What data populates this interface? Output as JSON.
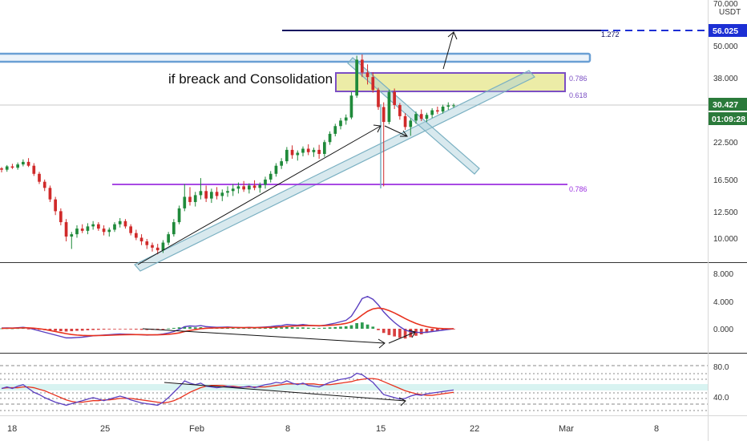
{
  "chart_data": {
    "type": "candlestick",
    "currency": "USDT",
    "last_price": "30.427",
    "countdown": "01:09:28",
    "target_price": "56.025",
    "y_ticks": [
      "70.000",
      "50.000",
      "38.000",
      "22.500",
      "16.500",
      "12.500",
      "10.000"
    ],
    "x_ticks": [
      "18",
      "25",
      "Feb",
      "8",
      "15",
      "22",
      "Mar",
      "8"
    ],
    "annotation": "if breack and Consolidation",
    "fib_labels": {
      "f1272": "1.272",
      "f0786_top": "0.786",
      "f0618": "0.618",
      "f0786_low": "0.786"
    },
    "panels": {
      "macd": {
        "y_ticks": [
          "8.000",
          "4.000",
          "0.000"
        ]
      },
      "rsi": {
        "y_ticks": [
          "80.0",
          "40.0"
        ]
      }
    },
    "ohlc": [
      [
        18.0,
        18.2,
        17.4,
        17.8
      ],
      [
        17.8,
        18.5,
        17.5,
        18.3
      ],
      [
        18.3,
        18.7,
        17.9,
        18.1
      ],
      [
        18.1,
        18.9,
        17.8,
        18.6
      ],
      [
        18.6,
        19.4,
        18.3,
        19.0
      ],
      [
        19.0,
        19.6,
        18.2,
        18.4
      ],
      [
        18.4,
        18.8,
        16.9,
        17.2
      ],
      [
        17.2,
        17.5,
        15.8,
        16.1
      ],
      [
        16.1,
        16.4,
        14.9,
        15.3
      ],
      [
        15.3,
        15.6,
        13.6,
        13.9
      ],
      [
        13.9,
        14.2,
        12.2,
        12.6
      ],
      [
        12.6,
        12.9,
        11.2,
        11.5
      ],
      [
        11.5,
        11.8,
        9.8,
        10.2
      ],
      [
        10.2,
        10.6,
        9.2,
        10.4
      ],
      [
        10.4,
        11.2,
        10.1,
        10.9
      ],
      [
        10.9,
        11.3,
        10.5,
        10.7
      ],
      [
        10.7,
        11.4,
        10.4,
        11.1
      ],
      [
        11.1,
        11.6,
        10.8,
        11.3
      ],
      [
        11.3,
        11.5,
        10.7,
        10.9
      ],
      [
        10.9,
        11.2,
        10.3,
        10.6
      ],
      [
        10.6,
        11.0,
        10.2,
        10.8
      ],
      [
        10.8,
        11.5,
        10.6,
        11.3
      ],
      [
        11.3,
        11.9,
        11.0,
        11.6
      ],
      [
        11.6,
        11.8,
        10.9,
        11.1
      ],
      [
        11.1,
        11.3,
        10.3,
        10.5
      ],
      [
        10.5,
        10.8,
        9.9,
        10.1
      ],
      [
        10.1,
        10.4,
        9.5,
        9.8
      ],
      [
        9.8,
        10.0,
        9.2,
        9.5
      ],
      [
        9.5,
        9.7,
        9.0,
        9.3
      ],
      [
        9.3,
        9.6,
        8.8,
        9.1
      ],
      [
        9.1,
        9.9,
        8.9,
        9.7
      ],
      [
        9.7,
        10.6,
        9.5,
        10.4
      ],
      [
        10.4,
        11.8,
        10.2,
        11.5
      ],
      [
        11.5,
        13.2,
        11.3,
        12.9
      ],
      [
        12.9,
        15.8,
        12.6,
        14.2
      ],
      [
        14.2,
        15.4,
        13.2,
        13.6
      ],
      [
        13.6,
        14.8,
        13.1,
        14.4
      ],
      [
        14.4,
        16.6,
        13.9,
        14.9
      ],
      [
        14.9,
        15.6,
        13.6,
        14.0
      ],
      [
        14.0,
        15.2,
        13.5,
        14.8
      ],
      [
        14.8,
        15.4,
        13.9,
        14.3
      ],
      [
        14.3,
        15.1,
        13.7,
        14.7
      ],
      [
        14.7,
        15.5,
        14.2,
        14.9
      ],
      [
        14.9,
        15.8,
        14.3,
        15.2
      ],
      [
        15.2,
        16.0,
        14.6,
        15.5
      ],
      [
        15.5,
        16.2,
        14.8,
        15.1
      ],
      [
        15.1,
        15.9,
        14.6,
        15.6
      ],
      [
        15.6,
        16.3,
        15.0,
        15.3
      ],
      [
        15.3,
        16.0,
        14.7,
        15.7
      ],
      [
        15.7,
        16.8,
        15.2,
        16.4
      ],
      [
        16.4,
        17.6,
        16.0,
        17.2
      ],
      [
        17.2,
        18.8,
        16.8,
        18.4
      ],
      [
        18.4,
        19.6,
        17.9,
        19.1
      ],
      [
        19.1,
        21.5,
        18.7,
        21.0
      ],
      [
        21.0,
        21.8,
        19.5,
        20.1
      ],
      [
        20.1,
        20.9,
        19.2,
        20.5
      ],
      [
        20.5,
        21.6,
        19.9,
        21.2
      ],
      [
        21.2,
        22.0,
        20.1,
        20.6
      ],
      [
        20.6,
        21.4,
        19.8,
        21.0
      ],
      [
        21.0,
        21.9,
        19.5,
        20.3
      ],
      [
        20.3,
        22.8,
        19.8,
        22.4
      ],
      [
        22.4,
        24.5,
        21.9,
        24.0
      ],
      [
        24.0,
        26.1,
        23.5,
        25.6
      ],
      [
        25.6,
        27.4,
        24.9,
        26.8
      ],
      [
        26.8,
        28.2,
        25.9,
        27.5
      ],
      [
        27.5,
        34.0,
        27.1,
        33.0
      ],
      [
        33.0,
        46.0,
        32.4,
        44.5
      ],
      [
        44.5,
        46.5,
        38.5,
        40.0
      ],
      [
        40.0,
        42.8,
        36.2,
        38.5
      ],
      [
        38.5,
        40.1,
        33.8,
        34.6
      ],
      [
        34.6,
        35.2,
        29.3,
        30.0
      ],
      [
        30.0,
        31.2,
        15.5,
        26.5
      ],
      [
        26.5,
        34.6,
        26.0,
        34.0
      ],
      [
        34.0,
        35.0,
        29.5,
        30.5
      ],
      [
        30.5,
        31.0,
        27.0,
        27.8
      ],
      [
        27.8,
        28.5,
        24.8,
        25.4
      ],
      [
        25.4,
        27.3,
        23.6,
        26.8
      ],
      [
        26.8,
        28.9,
        26.1,
        28.3
      ],
      [
        28.3,
        29.4,
        26.7,
        27.2
      ],
      [
        27.2,
        28.6,
        26.5,
        28.1
      ],
      [
        28.1,
        29.7,
        27.4,
        29.2
      ],
      [
        29.2,
        30.1,
        28.3,
        28.9
      ],
      [
        28.9,
        30.6,
        28.4,
        30.1
      ],
      [
        30.1,
        31.2,
        29.3,
        30.4
      ],
      [
        30.4,
        30.9,
        29.8,
        30.427
      ]
    ],
    "vol_hist": [
      0.05,
      0.06,
      0.04,
      0.07,
      0.08,
      -0.05,
      -0.12,
      -0.15,
      -0.2,
      -0.25,
      -0.3,
      -0.35,
      -0.4,
      -0.35,
      -0.3,
      -0.28,
      -0.22,
      -0.18,
      -0.15,
      -0.12,
      -0.1,
      -0.08,
      -0.05,
      -0.08,
      -0.1,
      -0.12,
      -0.15,
      -0.18,
      -0.15,
      -0.12,
      -0.05,
      0.05,
      0.12,
      0.2,
      0.3,
      0.25,
      0.2,
      0.22,
      0.15,
      0.12,
      0.1,
      0.12,
      0.15,
      0.12,
      0.1,
      0.08,
      0.1,
      0.08,
      0.1,
      0.12,
      0.15,
      0.2,
      0.18,
      0.25,
      0.22,
      0.18,
      0.2,
      0.15,
      0.12,
      0.1,
      0.15,
      0.2,
      0.25,
      0.3,
      0.35,
      0.5,
      0.8,
      0.9,
      0.6,
      0.3,
      -0.2,
      -0.6,
      -0.9,
      -1.1,
      -1.3,
      -1.4,
      -1.2,
      -1.0,
      -0.8,
      -0.6,
      -0.4,
      -0.3,
      -0.2,
      -0.1,
      -0.05
    ],
    "macd_line": [
      0.1,
      0.12,
      0.1,
      0.15,
      0.2,
      0.1,
      -0.1,
      -0.3,
      -0.5,
      -0.7,
      -0.9,
      -1.1,
      -1.3,
      -1.3,
      -1.25,
      -1.2,
      -1.1,
      -1.0,
      -0.95,
      -0.9,
      -0.85,
      -0.8,
      -0.75,
      -0.78,
      -0.8,
      -0.82,
      -0.85,
      -0.9,
      -0.88,
      -0.85,
      -0.75,
      -0.6,
      -0.4,
      -0.1,
      0.3,
      0.4,
      0.35,
      0.45,
      0.3,
      0.25,
      0.2,
      0.22,
      0.25,
      0.2,
      0.18,
      0.15,
      0.2,
      0.15,
      0.2,
      0.25,
      0.3,
      0.4,
      0.45,
      0.6,
      0.55,
      0.5,
      0.6,
      0.5,
      0.45,
      0.4,
      0.5,
      0.65,
      0.8,
      1.0,
      1.2,
      1.8,
      3.0,
      4.3,
      4.6,
      4.2,
      3.4,
      2.4,
      1.6,
      0.9,
      0.3,
      -0.2,
      -0.4,
      -0.5,
      -0.55,
      -0.5,
      -0.4,
      -0.3,
      -0.2,
      -0.1,
      0.0
    ],
    "signal_line": [
      0.05,
      0.07,
      0.08,
      0.1,
      0.12,
      0.12,
      0.08,
      0.0,
      -0.1,
      -0.25,
      -0.4,
      -0.55,
      -0.7,
      -0.82,
      -0.9,
      -0.95,
      -0.98,
      -0.98,
      -0.97,
      -0.95,
      -0.93,
      -0.9,
      -0.87,
      -0.85,
      -0.84,
      -0.84,
      -0.85,
      -0.86,
      -0.86,
      -0.86,
      -0.84,
      -0.79,
      -0.71,
      -0.59,
      -0.4,
      -0.24,
      -0.12,
      0.0,
      0.06,
      0.1,
      0.12,
      0.14,
      0.16,
      0.17,
      0.17,
      0.17,
      0.17,
      0.17,
      0.17,
      0.18,
      0.2,
      0.23,
      0.27,
      0.33,
      0.37,
      0.4,
      0.44,
      0.45,
      0.45,
      0.44,
      0.45,
      0.49,
      0.55,
      0.64,
      0.76,
      0.97,
      1.38,
      1.96,
      2.49,
      2.83,
      2.95,
      2.84,
      2.59,
      2.25,
      1.86,
      1.45,
      1.08,
      0.76,
      0.5,
      0.3,
      0.16,
      0.07,
      0.02,
      0.0,
      0.0
    ],
    "rsi": [
      50,
      52,
      50,
      53,
      55,
      50,
      45,
      42,
      38,
      35,
      32,
      30,
      28,
      30,
      32,
      34,
      36,
      38,
      36,
      34,
      36,
      38,
      40,
      38,
      35,
      33,
      31,
      30,
      29,
      28,
      32,
      38,
      45,
      52,
      60,
      57,
      55,
      57,
      53,
      52,
      51,
      52,
      53,
      52,
      51,
      52,
      53,
      51,
      53,
      55,
      56,
      58,
      57,
      60,
      57,
      55,
      57,
      54,
      53,
      52,
      55,
      58,
      60,
      62,
      63,
      65,
      70,
      68,
      63,
      58,
      50,
      42,
      40,
      38,
      36,
      37,
      40,
      42,
      41,
      43,
      44,
      45,
      46,
      47,
      48
    ],
    "rsi_ma": [
      50,
      51,
      51,
      51,
      52,
      52,
      51,
      49,
      47,
      44,
      41,
      38,
      35,
      33,
      32,
      32,
      33,
      34,
      34,
      35,
      35,
      36,
      37,
      37,
      37,
      36,
      35,
      34,
      33,
      32,
      31,
      32,
      34,
      37,
      41,
      45,
      48,
      51,
      53,
      54,
      54,
      54,
      53,
      53,
      52,
      52,
      52,
      52,
      52,
      52,
      53,
      54,
      55,
      56,
      56,
      56,
      56,
      56,
      56,
      55,
      55,
      55,
      56,
      57,
      58,
      59,
      61,
      62,
      63,
      63,
      62,
      59,
      56,
      53,
      50,
      47,
      45,
      43,
      42,
      41,
      41,
      42,
      43,
      44,
      45
    ]
  }
}
